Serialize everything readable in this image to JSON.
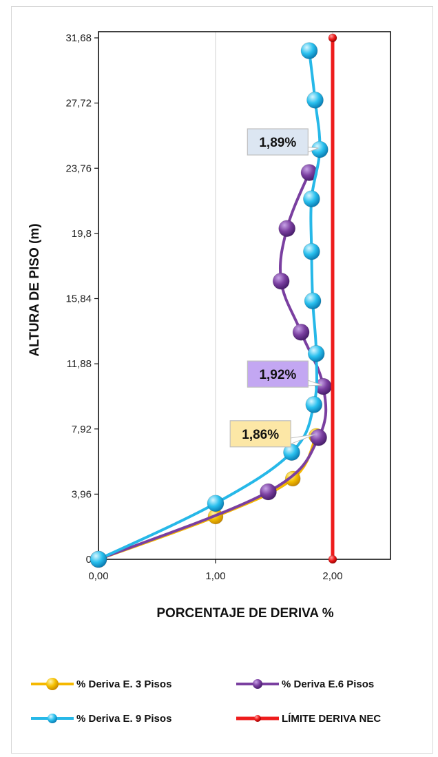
{
  "chart_data": {
    "type": "line",
    "xlabel": "PORCENTAJE DE DERIVA %",
    "ylabel": "ALTURA DE PISO (m)",
    "xlim": [
      0,
      2.5
    ],
    "ylim": [
      0,
      31.68
    ],
    "x_ticks": [
      "0,00",
      "1,00",
      "2,00"
    ],
    "y_ticks": [
      "0",
      "3,96",
      "7,92",
      "11,88",
      "15,84",
      "19,8",
      "23,76",
      "27,72",
      "31,68"
    ],
    "grid": "vertical",
    "legend_position": "bottom",
    "series": [
      {
        "name": "% Deriva E. 3 Pisos",
        "color": "#F5B800",
        "points": [
          [
            0,
            0
          ],
          [
            1.0,
            2.6
          ],
          [
            1.66,
            4.9
          ],
          [
            1.86,
            7.5
          ]
        ]
      },
      {
        "name": "% Deriva E.6 Pisos",
        "color": "#7A3FA0",
        "points": [
          [
            0,
            0
          ],
          [
            1.45,
            4.1
          ],
          [
            1.88,
            7.4
          ],
          [
            1.92,
            10.5
          ],
          [
            1.73,
            13.8
          ],
          [
            1.56,
            16.9
          ],
          [
            1.61,
            20.1
          ],
          [
            1.8,
            23.5
          ]
        ]
      },
      {
        "name": "% Deriva  E. 9 Pisos",
        "color": "#26B8E8",
        "points": [
          [
            0,
            0
          ],
          [
            1.0,
            3.4
          ],
          [
            1.65,
            6.5
          ],
          [
            1.84,
            9.4
          ],
          [
            1.86,
            12.5
          ],
          [
            1.83,
            15.7
          ],
          [
            1.82,
            18.7
          ],
          [
            1.82,
            21.9
          ],
          [
            1.89,
            24.9
          ],
          [
            1.85,
            27.9
          ],
          [
            1.8,
            30.9
          ]
        ]
      },
      {
        "name": "LÍMITE DERIVA NEC",
        "color": "#EE1C1C",
        "points": [
          [
            2.0,
            0
          ],
          [
            2.0,
            31.68
          ]
        ]
      }
    ],
    "annotations": [
      {
        "text": "1,89%",
        "series": 2,
        "at": [
          1.89,
          24.9
        ],
        "fill": "#DCE6F2"
      },
      {
        "text": "1,92%",
        "series": 1,
        "at": [
          1.92,
          10.5
        ],
        "fill": "#C3A7F2"
      },
      {
        "text": "1,86%",
        "series": 0,
        "at": [
          1.86,
          7.5
        ],
        "fill": "#FCE7A6"
      }
    ]
  }
}
